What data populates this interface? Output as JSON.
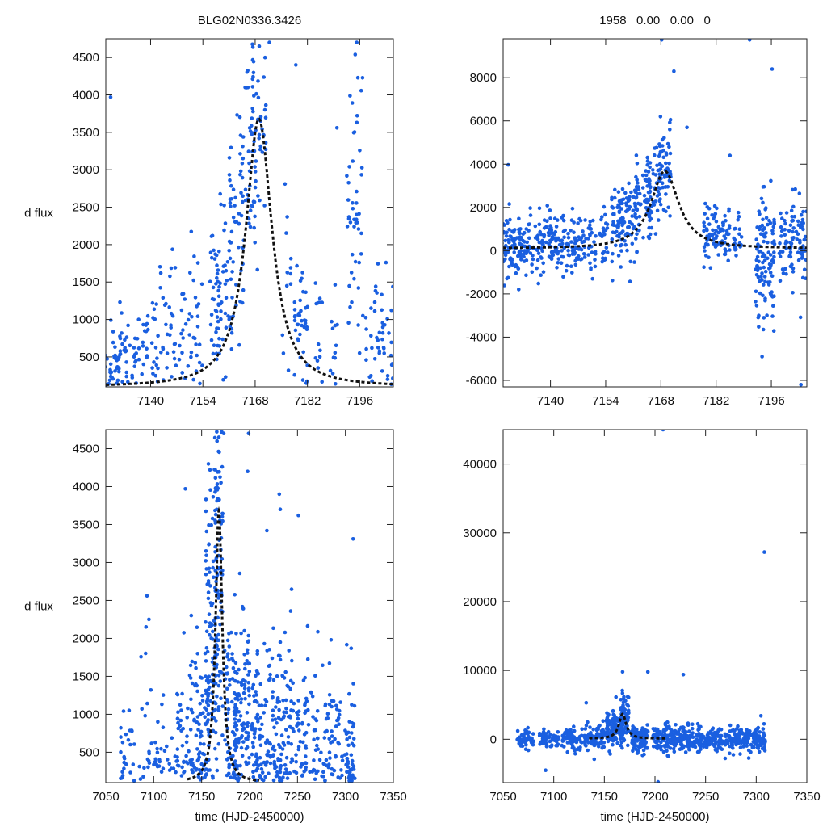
{
  "chart_data": [
    {
      "type": "scatter",
      "title": "BLG02N0336.3426",
      "xlabel": "",
      "ylabel": "d flux",
      "xlim": [
        7128,
        7205
      ],
      "ylim": [
        100,
        4750
      ],
      "xticks": [
        7140,
        7154,
        7168,
        7182,
        7196
      ],
      "yticks": [
        500,
        1000,
        1500,
        2000,
        2500,
        3000,
        3500,
        4000,
        4500
      ],
      "fit": {
        "t0": 7169,
        "peak": 3680,
        "base": 100,
        "width": 4.5,
        "shape": "peaked"
      },
      "clusters": [
        {
          "x": 7128.5,
          "w": 1.0,
          "n": 10,
          "mu": 400,
          "sd": 250
        },
        {
          "x": 7130.5,
          "w": 1.2,
          "n": 22,
          "mu": 600,
          "sd": 350
        },
        {
          "x": 7133,
          "w": 1.5,
          "n": 25,
          "mu": 650,
          "sd": 400
        },
        {
          "x": 7136,
          "w": 1.0,
          "n": 15,
          "mu": 550,
          "sd": 300
        },
        {
          "x": 7138.5,
          "w": 1.0,
          "n": 14,
          "mu": 600,
          "sd": 350
        },
        {
          "x": 7141,
          "w": 1.0,
          "n": 16,
          "mu": 700,
          "sd": 400
        },
        {
          "x": 7143.5,
          "w": 1.0,
          "n": 14,
          "mu": 750,
          "sd": 450
        },
        {
          "x": 7146,
          "w": 1.0,
          "n": 16,
          "mu": 850,
          "sd": 500
        },
        {
          "x": 7148.5,
          "w": 1.0,
          "n": 14,
          "mu": 850,
          "sd": 450
        },
        {
          "x": 7151,
          "w": 1.0,
          "n": 14,
          "mu": 900,
          "sd": 500
        },
        {
          "x": 7153,
          "w": 1.0,
          "n": 14,
          "mu": 1000,
          "sd": 500
        },
        {
          "x": 7157,
          "w": 1.5,
          "n": 32,
          "mu": 1200,
          "sd": 600
        },
        {
          "x": 7159.8,
          "w": 2.2,
          "n": 45,
          "mu": 1500,
          "sd": 600
        },
        {
          "x": 7163,
          "w": 2.0,
          "n": 40,
          "mu": 2300,
          "sd": 700
        },
        {
          "x": 7166,
          "w": 2.2,
          "n": 40,
          "mu": 3100,
          "sd": 600
        },
        {
          "x": 7169,
          "w": 2.0,
          "n": 50,
          "mu": 3700,
          "sd": 600
        },
        {
          "x": 7176.5,
          "w": 1.2,
          "n": 12,
          "mu": 1800,
          "sd": 700
        },
        {
          "x": 7180.3,
          "w": 1.8,
          "n": 40,
          "mu": 900,
          "sd": 350
        },
        {
          "x": 7185,
          "w": 1.0,
          "n": 14,
          "mu": 800,
          "sd": 400
        },
        {
          "x": 7189,
          "w": 1.0,
          "n": 12,
          "mu": 700,
          "sd": 400
        },
        {
          "x": 7193.5,
          "w": 1.0,
          "n": 18,
          "mu": 2400,
          "sd": 1300
        },
        {
          "x": 7195.5,
          "w": 1.5,
          "n": 30,
          "mu": 2400,
          "sd": 1200
        },
        {
          "x": 7198.5,
          "w": 1.0,
          "n": 10,
          "mu": 600,
          "sd": 400
        },
        {
          "x": 7201,
          "w": 1.0,
          "n": 15,
          "mu": 800,
          "sd": 500
        },
        {
          "x": 7203.5,
          "w": 1.5,
          "n": 22,
          "mu": 700,
          "sd": 500
        }
      ],
      "points": [
        [
          7129.3,
          3970
        ],
        [
          7169.1,
          4650
        ],
        [
          7171.8,
          4700
        ],
        [
          7178.9,
          4400
        ],
        [
          7194.8,
          4540
        ],
        [
          7195.5,
          4230
        ],
        [
          7195.2,
          4700
        ],
        [
          7189.9,
          3560
        ]
      ]
    },
    {
      "type": "scatter",
      "title": "1958   0.00   0.00   0",
      "xlabel": "",
      "ylabel": "",
      "xlim": [
        7128,
        7205
      ],
      "ylim": [
        -6300,
        9800
      ],
      "xticks": [
        7140,
        7154,
        7168,
        7182,
        7196
      ],
      "yticks": [
        -6000,
        -4000,
        -2000,
        0,
        2000,
        4000,
        6000,
        8000
      ],
      "fit": {
        "t0": 7169,
        "peak": 3680,
        "base": 100,
        "width": 4.5,
        "shape": "peaked"
      },
      "clusters": [
        {
          "x": 7128.7,
          "w": 1.2,
          "n": 40,
          "mu": 200,
          "sd": 800
        },
        {
          "x": 7131,
          "w": 1.5,
          "n": 40,
          "mu": 200,
          "sd": 700
        },
        {
          "x": 7133.5,
          "w": 1.5,
          "n": 40,
          "mu": 300,
          "sd": 700
        },
        {
          "x": 7136.5,
          "w": 1.2,
          "n": 25,
          "mu": 100,
          "sd": 700
        },
        {
          "x": 7139,
          "w": 1.5,
          "n": 35,
          "mu": 200,
          "sd": 700
        },
        {
          "x": 7141.5,
          "w": 1.5,
          "n": 35,
          "mu": 100,
          "sd": 700
        },
        {
          "x": 7144.5,
          "w": 1.5,
          "n": 35,
          "mu": 250,
          "sd": 700
        },
        {
          "x": 7147.5,
          "w": 1.5,
          "n": 35,
          "mu": 300,
          "sd": 700
        },
        {
          "x": 7150.5,
          "w": 1.0,
          "n": 25,
          "mu": 400,
          "sd": 800
        },
        {
          "x": 7153.5,
          "w": 1.0,
          "n": 25,
          "mu": 600,
          "sd": 800
        },
        {
          "x": 7157,
          "w": 1.5,
          "n": 50,
          "mu": 1100,
          "sd": 1000
        },
        {
          "x": 7160,
          "w": 2.0,
          "n": 60,
          "mu": 1400,
          "sd": 1000
        },
        {
          "x": 7163.3,
          "w": 2.0,
          "n": 55,
          "mu": 2300,
          "sd": 900
        },
        {
          "x": 7166,
          "w": 2.0,
          "n": 50,
          "mu": 3000,
          "sd": 1000
        },
        {
          "x": 7169,
          "w": 1.5,
          "n": 55,
          "mu": 3700,
          "sd": 1100
        },
        {
          "x": 7180.5,
          "w": 1.8,
          "n": 45,
          "mu": 900,
          "sd": 700
        },
        {
          "x": 7184,
          "w": 1.5,
          "n": 35,
          "mu": 600,
          "sd": 600
        },
        {
          "x": 7187.5,
          "w": 1.0,
          "n": 20,
          "mu": 700,
          "sd": 600
        },
        {
          "x": 7193,
          "w": 1.0,
          "n": 45,
          "mu": -1000,
          "sd": 1300
        },
        {
          "x": 7195.3,
          "w": 1.5,
          "n": 70,
          "mu": 0,
          "sd": 1800
        },
        {
          "x": 7199,
          "w": 1.0,
          "n": 25,
          "mu": 400,
          "sd": 900
        },
        {
          "x": 7201.5,
          "w": 1.0,
          "n": 30,
          "mu": 600,
          "sd": 900
        },
        {
          "x": 7203.8,
          "w": 1.2,
          "n": 35,
          "mu": 300,
          "sd": 900
        }
      ],
      "points": [
        [
          7129.3,
          3970
        ],
        [
          7168.2,
          9750
        ],
        [
          7171.3,
          8300
        ],
        [
          7174.6,
          5700
        ],
        [
          7185.5,
          4400
        ],
        [
          7190.5,
          9750
        ],
        [
          7196.2,
          8400
        ],
        [
          7167.9,
          6200
        ],
        [
          7203.5,
          -6200
        ]
      ]
    },
    {
      "type": "scatter",
      "title": "",
      "xlabel": "time (HJD-2450000)",
      "ylabel": "d flux",
      "xlim": [
        7050,
        7350
      ],
      "ylim": [
        100,
        4750
      ],
      "xticks": [
        7050,
        7100,
        7150,
        7200,
        7250,
        7300,
        7350
      ],
      "yticks": [
        500,
        1000,
        1500,
        2000,
        2500,
        3000,
        3500,
        4000,
        4500
      ],
      "fit": {
        "t0": 7168,
        "peak": 3680,
        "base": 100,
        "width": 4.5,
        "shape": "peaked",
        "xrange": [
          7135,
          7210
        ]
      },
      "clusters": [
        {
          "x": 7072,
          "w": 8,
          "n": 25,
          "mu": 450,
          "sd": 350
        },
        {
          "x": 7095,
          "w": 10,
          "n": 25,
          "mu": 600,
          "sd": 500
        },
        {
          "x": 7115,
          "w": 10,
          "n": 20,
          "mu": 500,
          "sd": 400
        },
        {
          "x": 7132,
          "w": 8,
          "n": 40,
          "mu": 700,
          "sd": 500
        },
        {
          "x": 7148,
          "w": 10,
          "n": 90,
          "mu": 800,
          "sd": 600
        },
        {
          "x": 7160,
          "w": 6,
          "n": 110,
          "mu": 1800,
          "sd": 1300
        },
        {
          "x": 7168,
          "w": 4,
          "n": 100,
          "mu": 2800,
          "sd": 1400
        },
        {
          "x": 7180,
          "w": 6,
          "n": 70,
          "mu": 1000,
          "sd": 700
        },
        {
          "x": 7192,
          "w": 8,
          "n": 110,
          "mu": 900,
          "sd": 700
        },
        {
          "x": 7212,
          "w": 10,
          "n": 90,
          "mu": 800,
          "sd": 700
        },
        {
          "x": 7235,
          "w": 12,
          "n": 110,
          "mu": 800,
          "sd": 650
        },
        {
          "x": 7260,
          "w": 12,
          "n": 70,
          "mu": 650,
          "sd": 550
        },
        {
          "x": 7285,
          "w": 12,
          "n": 60,
          "mu": 600,
          "sd": 500
        },
        {
          "x": 7305,
          "w": 6,
          "n": 50,
          "mu": 550,
          "sd": 500
        }
      ],
      "points": [
        [
          7133,
          3970
        ],
        [
          7093,
          2560
        ],
        [
          7092,
          2150
        ],
        [
          7095,
          2250
        ],
        [
          7097,
          1320
        ],
        [
          7168,
          4650
        ],
        [
          7166,
          4600
        ],
        [
          7173,
          4700
        ],
        [
          7199,
          4700
        ],
        [
          7198,
          4200
        ],
        [
          7231,
          3900
        ],
        [
          7232,
          3700
        ],
        [
          7251,
          3620
        ],
        [
          7218,
          3420
        ],
        [
          7308,
          3310
        ],
        [
          7306,
          1870
        ],
        [
          7285,
          1980
        ]
      ]
    },
    {
      "type": "scatter",
      "title": "",
      "xlabel": "time (HJD-2450000)",
      "ylabel": "",
      "xlim": [
        7050,
        7350
      ],
      "ylim": [
        -6300,
        45000
      ],
      "xticks": [
        7050,
        7100,
        7150,
        7200,
        7250,
        7300,
        7350
      ],
      "yticks": [
        0,
        10000,
        20000,
        30000,
        40000
      ],
      "fit": {
        "t0": 7168,
        "peak": 3680,
        "base": 100,
        "width": 4.5,
        "shape": "peaked",
        "xrange": [
          7135,
          7210
        ]
      },
      "clusters": [
        {
          "x": 7072,
          "w": 8,
          "n": 60,
          "mu": 0,
          "sd": 700
        },
        {
          "x": 7095,
          "w": 10,
          "n": 60,
          "mu": 0,
          "sd": 700
        },
        {
          "x": 7118,
          "w": 10,
          "n": 60,
          "mu": 0,
          "sd": 700
        },
        {
          "x": 7140,
          "w": 10,
          "n": 80,
          "mu": 300,
          "sd": 900
        },
        {
          "x": 7160,
          "w": 8,
          "n": 120,
          "mu": 1500,
          "sd": 1300
        },
        {
          "x": 7170,
          "w": 4,
          "n": 80,
          "mu": 3000,
          "sd": 1800
        },
        {
          "x": 7185,
          "w": 8,
          "n": 90,
          "mu": 200,
          "sd": 1100
        },
        {
          "x": 7210,
          "w": 12,
          "n": 110,
          "mu": 0,
          "sd": 1000
        },
        {
          "x": 7235,
          "w": 12,
          "n": 110,
          "mu": 0,
          "sd": 1000
        },
        {
          "x": 7260,
          "w": 12,
          "n": 90,
          "mu": 0,
          "sd": 900
        },
        {
          "x": 7285,
          "w": 12,
          "n": 90,
          "mu": 0,
          "sd": 900
        },
        {
          "x": 7303,
          "w": 6,
          "n": 70,
          "mu": 0,
          "sd": 900
        }
      ],
      "points": [
        [
          7208,
          45000
        ],
        [
          7308,
          27200
        ],
        [
          7193,
          9800
        ],
        [
          7168,
          9800
        ],
        [
          7228,
          9400
        ],
        [
          7203,
          -6200
        ],
        [
          7132,
          5300
        ],
        [
          7092,
          -4500
        ],
        [
          7140,
          -2900
        ]
      ]
    }
  ]
}
